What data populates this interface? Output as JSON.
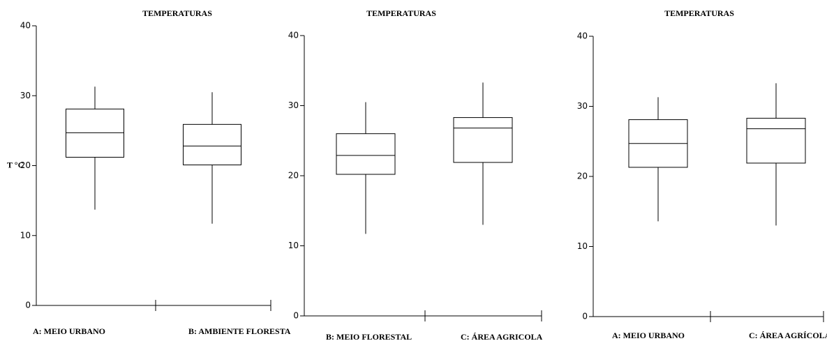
{
  "chart_data": [
    {
      "type": "box",
      "title": "TEMPERATURAS",
      "ylabel": "T °C",
      "categories": [
        "A: MEIO URBANO",
        "B: AMBIENTE FLORESTA"
      ],
      "min": [
        13.7,
        11.7
      ],
      "q1": [
        21.2,
        20.1
      ],
      "median": [
        24.7,
        22.8
      ],
      "q3": [
        28.1,
        25.9
      ],
      "max": [
        31.3,
        30.5
      ],
      "ylim": [
        0,
        40
      ],
      "yticks": [
        0,
        10,
        20,
        30,
        40
      ],
      "color": "#000000"
    },
    {
      "type": "box",
      "title": "TEMPERATURAS",
      "categories": [
        "B: MEIO FLORESTAL",
        "C: ÁREA AGRICOLA"
      ],
      "min": [
        11.7,
        13.0
      ],
      "q1": [
        20.2,
        21.9
      ],
      "median": [
        22.9,
        26.8
      ],
      "q3": [
        26.0,
        28.3
      ],
      "max": [
        30.5,
        33.3
      ],
      "ylim": [
        0,
        40
      ],
      "yticks": [
        0,
        10,
        20,
        30,
        40
      ],
      "color": "#000000"
    },
    {
      "type": "box",
      "title": "TEMPERATURAS",
      "categories": [
        "A: MEIO URBANO",
        "C: ÁREA AGRÍCOLA"
      ],
      "min": [
        13.6,
        13.0
      ],
      "q1": [
        21.3,
        21.9
      ],
      "median": [
        24.7,
        26.8
      ],
      "q3": [
        28.1,
        28.3
      ],
      "max": [
        31.3,
        33.3
      ],
      "ylim": [
        0,
        40
      ],
      "yticks": [
        0,
        10,
        20,
        30,
        40
      ],
      "color": "#000000"
    }
  ]
}
